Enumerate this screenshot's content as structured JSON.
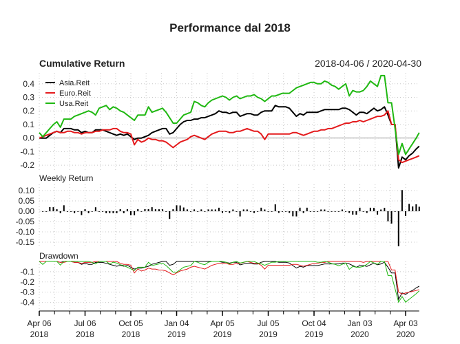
{
  "chart_data": {
    "type": "line",
    "title": "Performance dal 2018",
    "date_range_label": "2018-04-06 / 2020-04-30",
    "start": "2018-04-06",
    "end": "2020-04-30",
    "frequency": "weekly",
    "legend_position": "top-left",
    "grid": true,
    "x_ticks": [
      {
        "date": "2018-04-06",
        "label1": "Apr 06",
        "label2": "2018"
      },
      {
        "date": "2018-07-06",
        "label1": "Jul 06",
        "label2": "2018"
      },
      {
        "date": "2018-10-05",
        "label1": "Oct 05",
        "label2": "2018"
      },
      {
        "date": "2019-01-04",
        "label1": "Jan 04",
        "label2": "2019"
      },
      {
        "date": "2019-04-05",
        "label1": "Apr 05",
        "label2": "2019"
      },
      {
        "date": "2019-07-05",
        "label1": "Jul 05",
        "label2": "2019"
      },
      {
        "date": "2019-10-04",
        "label1": "Oct 04",
        "label2": "2019"
      },
      {
        "date": "2020-01-03",
        "label1": "Jan 03",
        "label2": "2020"
      },
      {
        "date": "2020-04-03",
        "label1": "Apr 03",
        "label2": "2020"
      }
    ],
    "panels": {
      "cumulative": {
        "title": "Cumulative Return",
        "ylim": [
          -0.25,
          0.48
        ],
        "y_ticks": [
          0.4,
          0.3,
          0.2,
          0.1,
          0.0,
          -0.1,
          -0.2
        ],
        "y_tick_labels": [
          "0.4",
          "0.3",
          "0.2",
          "0.1",
          "0.0",
          "-0.1",
          "-0.2"
        ]
      },
      "weekly": {
        "title": "Weekly Return",
        "series": "Asia.Reit",
        "ylim": [
          -0.17,
          0.13
        ],
        "y_ticks": [
          0.1,
          0.05,
          0.0,
          -0.05,
          -0.1,
          -0.15
        ],
        "y_tick_labels": [
          "0.10",
          "0.05",
          "0.00",
          "-0.05",
          "-0.10",
          "-0.15"
        ]
      },
      "drawdown": {
        "title": "Drawdown",
        "ylim": [
          -0.47,
          0.0
        ],
        "y_ticks": [
          -0.1,
          -0.2,
          -0.3,
          -0.4
        ],
        "y_tick_labels": [
          "-0.1",
          "-0.2",
          "-0.3",
          "-0.4"
        ]
      }
    },
    "series": [
      {
        "name": "Asia.Reit",
        "color": "#000000",
        "cumulative": [
          0,
          0,
          0,
          0.02,
          0.04,
          0.05,
          0.04,
          0.07,
          0.07,
          0.07,
          0.06,
          0.06,
          0.04,
          0.05,
          0.04,
          0.04,
          0.06,
          0.06,
          0.06,
          0.05,
          0.04,
          0.03,
          0.02,
          0.03,
          0.02,
          0.03,
          0.01,
          -0.01,
          0,
          0,
          0.01,
          0.02,
          0.04,
          0.05,
          0.06,
          0.07,
          0.07,
          0.03,
          0.04,
          0.07,
          0.1,
          0.12,
          0.13,
          0.13,
          0.14,
          0.14,
          0.15,
          0.15,
          0.16,
          0.17,
          0.18,
          0.2,
          0.19,
          0.19,
          0.18,
          0.19,
          0.19,
          0.16,
          0.17,
          0.18,
          0.18,
          0.17,
          0.17,
          0.19,
          0.2,
          0.2,
          0.2,
          0.24,
          0.23,
          0.23,
          0.23,
          0.22,
          0.19,
          0.16,
          0.18,
          0.17,
          0.19,
          0.19,
          0.19,
          0.19,
          0.2,
          0.21,
          0.21,
          0.21,
          0.21,
          0.21,
          0.22,
          0.22,
          0.21,
          0.19,
          0.17,
          0.19,
          0.19,
          0.18,
          0.2,
          0.22,
          0.2,
          0.21,
          0.23,
          0.17,
          0.1,
          0.1,
          -0.22,
          -0.14,
          -0.16,
          -0.13,
          -0.11,
          -0.08,
          -0.06
        ]
      },
      {
        "name": "Euro.Reit",
        "color": "#e41a1c",
        "cumulative": [
          0,
          0.01,
          0.02,
          0.03,
          0.04,
          0.05,
          0.04,
          0.04,
          0.05,
          0.05,
          0.04,
          0.04,
          0.03,
          0.04,
          0.04,
          0.04,
          0.05,
          0.05,
          0.06,
          0.06,
          0.06,
          0.07,
          0.07,
          0.05,
          0.04,
          0.04,
          0.03,
          -0.05,
          -0.01,
          -0.03,
          -0.02,
          0,
          -0.01,
          -0.01,
          -0.02,
          -0.02,
          -0.03,
          -0.05,
          -0.07,
          -0.05,
          -0.03,
          -0.02,
          -0.01,
          0.01,
          0.02,
          0.01,
          0,
          -0.01,
          0.01,
          0.03,
          0.04,
          0.05,
          0.05,
          0.05,
          0.04,
          0.04,
          0.05,
          0.05,
          0.06,
          0.07,
          0.06,
          0.05,
          0.05,
          0.03,
          -0.01,
          0.03,
          0.03,
          0.03,
          0.03,
          0.03,
          0.03,
          0.03,
          0.04,
          0.04,
          0.03,
          0.02,
          0.03,
          0.04,
          0.05,
          0.05,
          0.06,
          0.06,
          0.07,
          0.07,
          0.08,
          0.09,
          0.1,
          0.11,
          0.11,
          0.12,
          0.12,
          0.13,
          0.12,
          0.13,
          0.14,
          0.15,
          0.16,
          0.16,
          0.17,
          0.2,
          0.1,
          0.1,
          -0.16,
          -0.18,
          -0.17,
          -0.16,
          -0.15,
          -0.14,
          -0.13
        ]
      },
      {
        "name": "Usa.Reit",
        "color": "#1fb811",
        "cumulative": [
          0.04,
          0.01,
          0.04,
          0.07,
          0.1,
          0.12,
          0.08,
          0.14,
          0.14,
          0.14,
          0.16,
          0.17,
          0.18,
          0.19,
          0.2,
          0.19,
          0.17,
          0.22,
          0.23,
          0.24,
          0.21,
          0.23,
          0.22,
          0.2,
          0.19,
          0.17,
          0.15,
          0.13,
          0.17,
          0.17,
          0.17,
          0.23,
          0.19,
          0.2,
          0.21,
          0.22,
          0.19,
          0.15,
          0.11,
          0.11,
          0.14,
          0.17,
          0.18,
          0.19,
          0.27,
          0.26,
          0.24,
          0.23,
          0.26,
          0.28,
          0.29,
          0.3,
          0.31,
          0.3,
          0.28,
          0.3,
          0.31,
          0.29,
          0.3,
          0.31,
          0.31,
          0.32,
          0.3,
          0.29,
          0.27,
          0.29,
          0.31,
          0.31,
          0.32,
          0.33,
          0.33,
          0.33,
          0.35,
          0.37,
          0.38,
          0.39,
          0.4,
          0.41,
          0.41,
          0.4,
          0.4,
          0.42,
          0.41,
          0.39,
          0.38,
          0.36,
          0.38,
          0.4,
          0.31,
          0.35,
          0.34,
          0.34,
          0.35,
          0.38,
          0.42,
          0.4,
          0.38,
          0.46,
          0.46,
          0.26,
          0.26,
          0.07,
          -0.12,
          -0.04,
          -0.12,
          -0.08,
          -0.04,
          0.0,
          0.04
        ]
      }
    ]
  }
}
